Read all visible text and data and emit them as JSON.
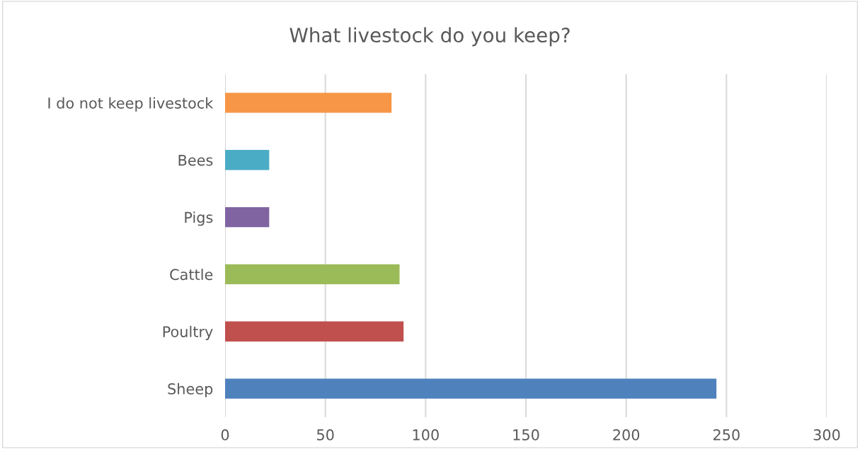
{
  "chart_data": {
    "type": "bar",
    "orientation": "horizontal",
    "title": "What livestock do you keep?",
    "categories": [
      "I do not keep livestock",
      "Bees",
      "Pigs",
      "Cattle",
      "Poultry",
      "Sheep"
    ],
    "values": [
      83,
      22,
      22,
      87,
      89,
      245
    ],
    "colors": [
      "#f79646",
      "#4bacc6",
      "#8064a2",
      "#9bbb59",
      "#c0504d",
      "#4f81bd"
    ],
    "xlim": [
      0,
      300
    ],
    "xticks": [
      0,
      50,
      100,
      150,
      200,
      250,
      300
    ],
    "grid": "x",
    "legend": false
  }
}
